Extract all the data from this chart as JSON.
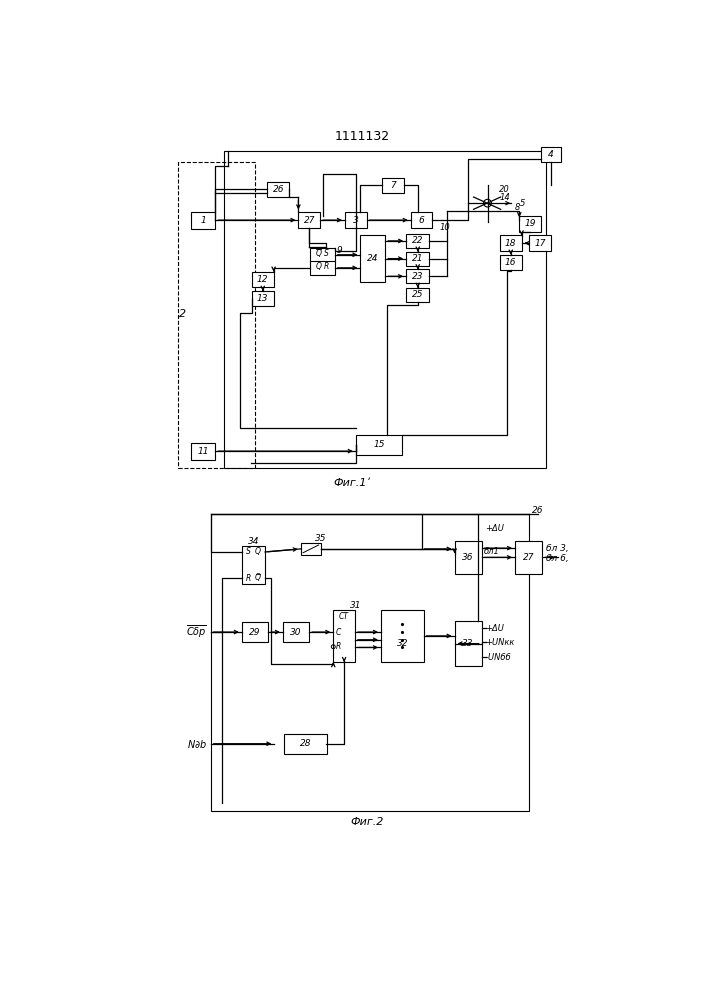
{
  "title": "1111132",
  "fig1_label": "Фиг.1ʹ",
  "fig2_label": "Фиг.2"
}
